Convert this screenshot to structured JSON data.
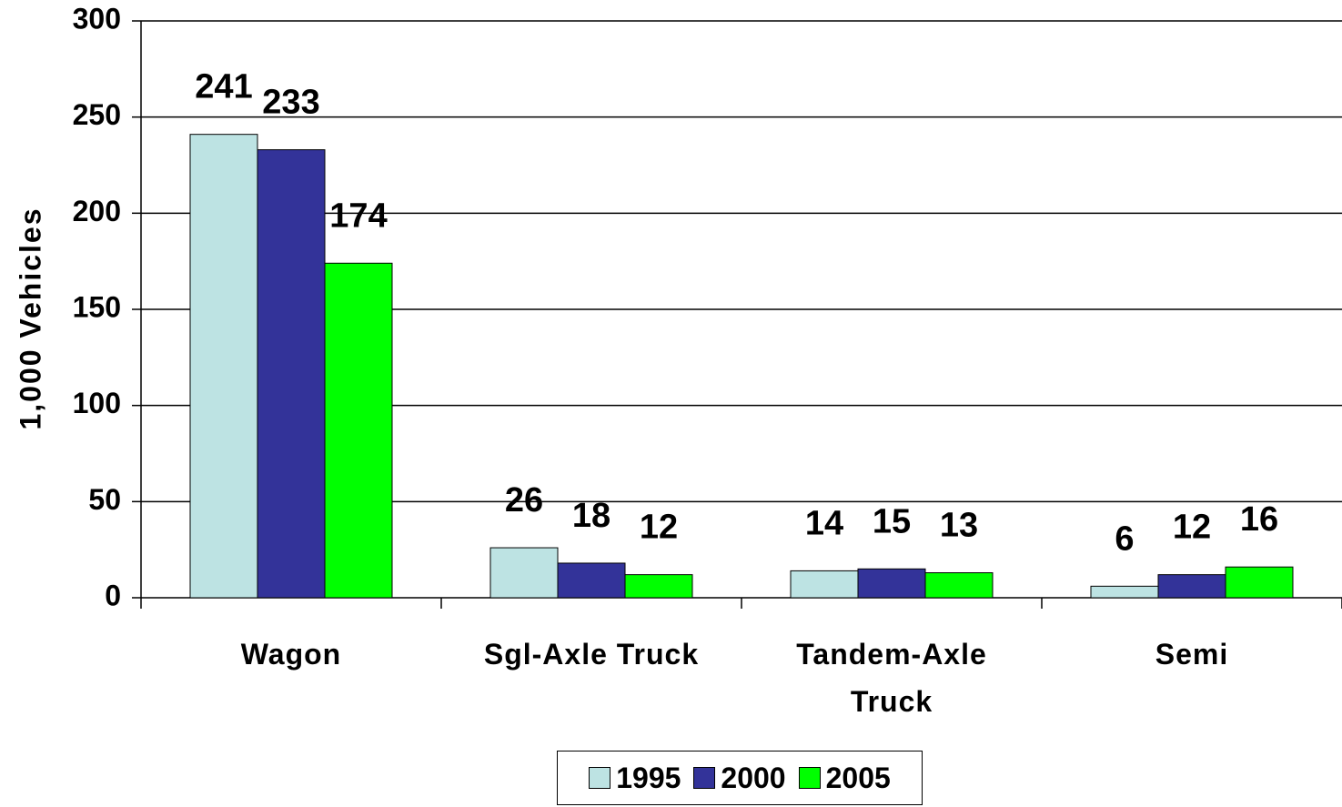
{
  "chart_data": {
    "type": "bar",
    "y_label": "1,000 Vehicles",
    "categories": [
      "Wagon",
      "Sgl-Axle Truck",
      "Tandem-Axle Truck",
      "Semi"
    ],
    "series": [
      {
        "name": "1995",
        "color": "#bde3e3",
        "values": [
          241,
          26,
          14,
          6
        ]
      },
      {
        "name": "2000",
        "color": "#333399",
        "values": [
          233,
          18,
          15,
          12
        ]
      },
      {
        "name": "2005",
        "color": "#00ff00",
        "values": [
          174,
          12,
          13,
          16
        ]
      }
    ],
    "ylim": [
      0,
      300
    ],
    "yticks": [
      0,
      50,
      100,
      150,
      200,
      250,
      300
    ],
    "grid": true,
    "legend": "bottom"
  }
}
